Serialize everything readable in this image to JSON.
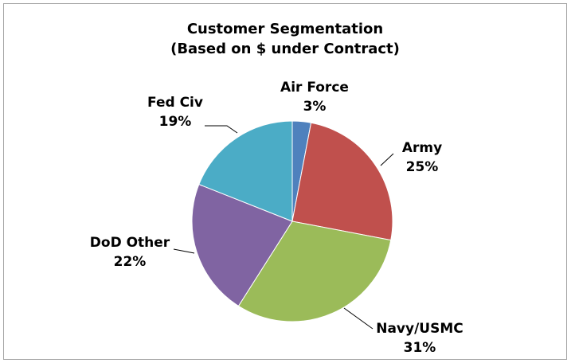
{
  "chart_data": {
    "type": "pie",
    "title": "Customer Segmentation",
    "subtitle": "(Based on $ under Contract)",
    "categories": [
      "Air Force",
      "Army",
      "Navy/USMC",
      "DoD Other",
      "Fed Civ"
    ],
    "values": [
      3,
      25,
      31,
      22,
      19
    ],
    "value_labels": [
      "3%",
      "25%",
      "31%",
      "22%",
      "19%"
    ],
    "colors": [
      "#4f81bd",
      "#c0504d",
      "#9bbb59",
      "#8064a2",
      "#4bacc6"
    ]
  }
}
